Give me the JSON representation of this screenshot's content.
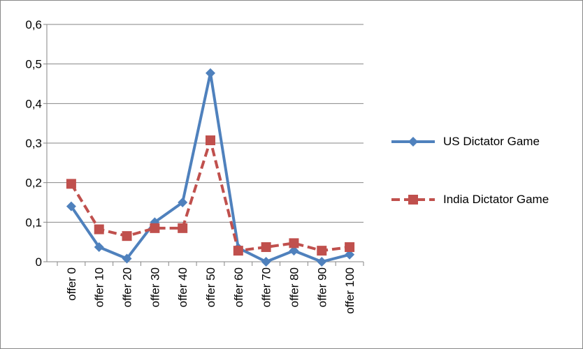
{
  "chart_data": {
    "type": "line",
    "categories": [
      "offer 0",
      "offer 10",
      "offer 20",
      "offer 30",
      "offer 40",
      "offer 50",
      "offer 60",
      "offer 70",
      "offer 80",
      "offer 90",
      "offer 100"
    ],
    "series": [
      {
        "name": "US Dictator Game",
        "color": "#4f81bd",
        "marker": "diamond",
        "dash": false,
        "values": [
          0.14,
          0.037,
          0.008,
          0.1,
          0.15,
          0.477,
          0.035,
          0,
          0.028,
          0,
          0.018
        ]
      },
      {
        "name": "India Dictator Game",
        "color": "#c0504d",
        "marker": "square",
        "dash": true,
        "values": [
          0.197,
          0.082,
          0.065,
          0.085,
          0.085,
          0.307,
          0.028,
          0.037,
          0.047,
          0.028,
          0.037
        ]
      }
    ],
    "ylim": [
      0,
      0.6
    ],
    "yticks": [
      0,
      {
        "value": 0.1,
        "label": "0,1"
      },
      {
        "value": 0.2,
        "label": "0,2"
      },
      {
        "value": 0.3,
        "label": "0,3"
      },
      {
        "value": 0.4,
        "label": "0,4"
      },
      {
        "value": 0.5,
        "label": "0,5"
      },
      {
        "value": 0.6,
        "label": "0,6"
      }
    ],
    "grid": true,
    "legend": "right"
  }
}
